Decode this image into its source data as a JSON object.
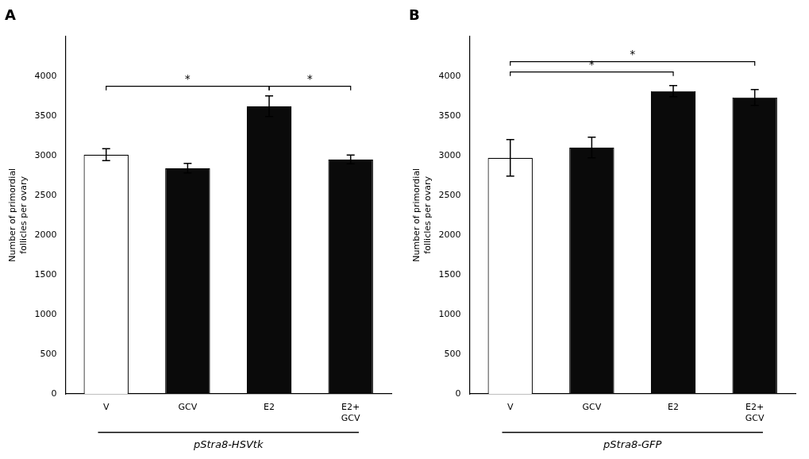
{
  "chart_data": [
    {
      "type": "bar",
      "title": "A",
      "categories": [
        "V",
        "GCV",
        "E2",
        "E2+\nGCV"
      ],
      "values": [
        3010,
        2840,
        3620,
        2950
      ],
      "errors": [
        75,
        60,
        130,
        55
      ],
      "colors": [
        "#ffffff",
        "#0a0a0a",
        "#0a0a0a",
        "#0a0a0a"
      ],
      "xlabel": "pStra8-HSVtk",
      "ylabel": "Number of primordial\nfollicles per ovary",
      "ylim": [
        0,
        4500
      ],
      "yticks": [
        0,
        500,
        1000,
        1500,
        2000,
        2500,
        3000,
        3500,
        4000
      ],
      "grid": false,
      "annotations": [
        {
          "type": "bracket",
          "from": "V",
          "to": "E2",
          "y": 3820,
          "ybar": 3870,
          "text": "*"
        },
        {
          "type": "bracket",
          "from": "E2",
          "to": "E2+\nGCV",
          "y": 3820,
          "ybar": 3870,
          "text": "*"
        }
      ]
    },
    {
      "type": "bar",
      "title": "B",
      "categories": [
        "V",
        "GCV",
        "E2",
        "E2+\nGCV"
      ],
      "values": [
        2970,
        3100,
        3810,
        3730
      ],
      "errors": [
        230,
        130,
        70,
        100
      ],
      "colors": [
        "#ffffff",
        "#0a0a0a",
        "#0a0a0a",
        "#0a0a0a"
      ],
      "xlabel": "pStra8-GFP",
      "ylabel": "Number of primordial\nfollicles per ovary",
      "ylim": [
        0,
        4500
      ],
      "yticks": [
        0,
        500,
        1000,
        1500,
        2000,
        2500,
        3000,
        3500,
        4000
      ],
      "grid": false,
      "annotations": [
        {
          "type": "bracket",
          "from": "V",
          "to": "E2",
          "y": 4000,
          "ybar": 4050,
          "text": "*"
        },
        {
          "type": "bracket",
          "from": "V",
          "to": "E2+\nGCV",
          "y": 4130,
          "ybar": 4180,
          "text": "*"
        }
      ]
    }
  ]
}
